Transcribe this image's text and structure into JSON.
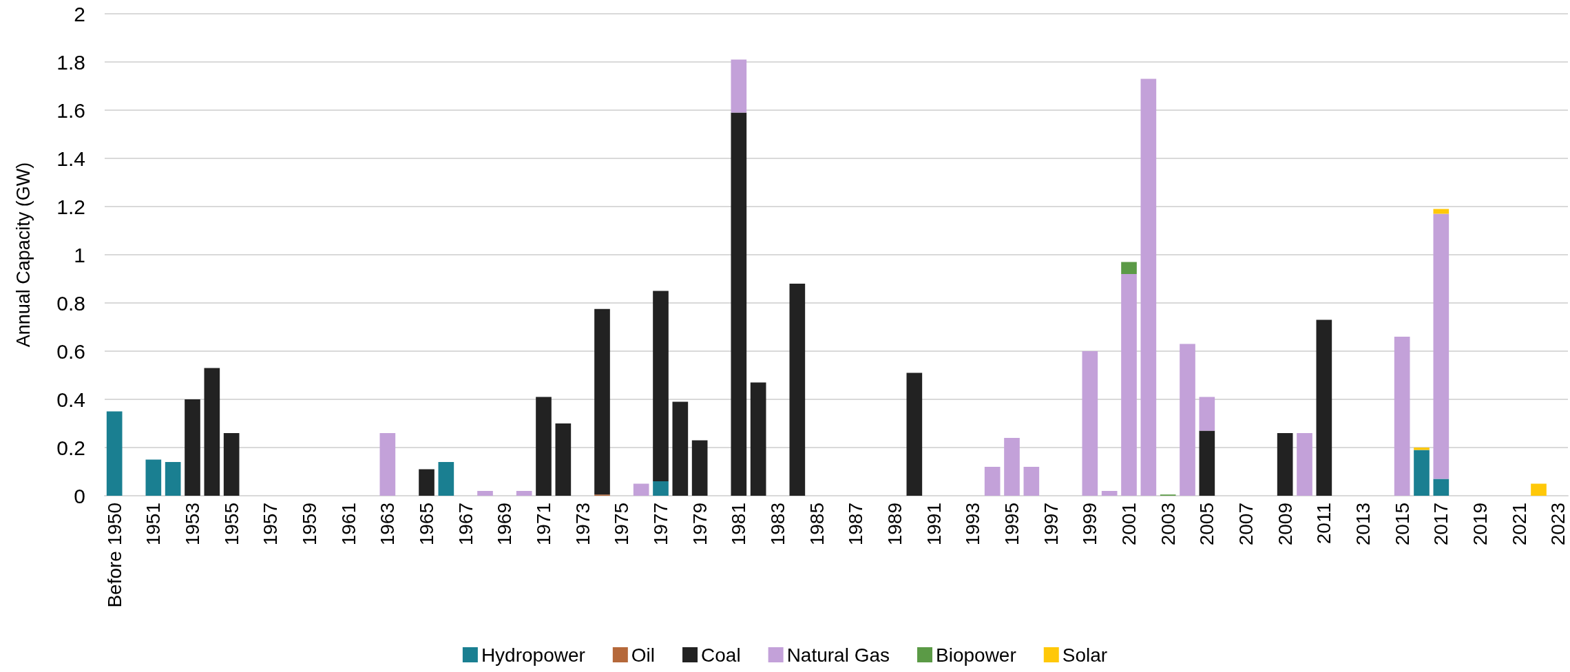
{
  "chart_data": {
    "type": "bar",
    "stacked": true,
    "ylabel": "Annual Capacity (GW)",
    "ylim": [
      0,
      2
    ],
    "yticks": [
      0,
      0.2,
      0.4,
      0.6,
      0.8,
      1,
      1.2,
      1.4,
      1.6,
      1.8,
      2
    ],
    "grid": "y",
    "legend": "bottom",
    "categories": [
      "Before 1950",
      null,
      "1951",
      null,
      "1953",
      null,
      "1955",
      null,
      "1957",
      null,
      "1959",
      null,
      "1961",
      null,
      "1963",
      null,
      "1965",
      null,
      "1967",
      null,
      "1969",
      null,
      "1971",
      null,
      "1973",
      null,
      "1975",
      null,
      "1977",
      null,
      "1979",
      null,
      "1981",
      null,
      "1983",
      null,
      "1985",
      null,
      "1987",
      null,
      "1989",
      null,
      "1991",
      null,
      "1993",
      null,
      "1995",
      null,
      "1997",
      null,
      "1999",
      null,
      "2001",
      null,
      "2003",
      null,
      "2005",
      null,
      "2007",
      null,
      "2009",
      null,
      "2011",
      null,
      "2013",
      null,
      "2015",
      null,
      "2017",
      null,
      "2019",
      null,
      "2021",
      null,
      "2023"
    ],
    "series": [
      {
        "name": "Hydropower",
        "color": "#1a7f91",
        "values": [
          0.35,
          null,
          0.15,
          0.14,
          null,
          null,
          null,
          null,
          null,
          null,
          null,
          null,
          null,
          null,
          null,
          null,
          null,
          0.14,
          null,
          null,
          null,
          null,
          null,
          null,
          null,
          null,
          null,
          null,
          0.06,
          null,
          null,
          null,
          null,
          null,
          null,
          null,
          null,
          null,
          null,
          null,
          null,
          null,
          null,
          null,
          null,
          null,
          null,
          null,
          null,
          null,
          null,
          null,
          null,
          null,
          null,
          null,
          null,
          null,
          null,
          null,
          null,
          null,
          null,
          null,
          null,
          null,
          null,
          0.19,
          0.07,
          null,
          null,
          null,
          null,
          null,
          null
        ]
      },
      {
        "name": "Oil",
        "color": "#b5683a",
        "values": [
          null,
          null,
          null,
          null,
          null,
          null,
          null,
          null,
          null,
          null,
          null,
          null,
          null,
          null,
          null,
          null,
          null,
          null,
          null,
          null,
          null,
          null,
          null,
          null,
          null,
          0.005,
          null,
          null,
          null,
          null,
          null,
          null,
          null,
          null,
          null,
          null,
          null,
          null,
          null,
          null,
          null,
          null,
          null,
          null,
          null,
          null,
          null,
          null,
          null,
          null,
          null,
          null,
          null,
          null,
          null,
          null,
          null,
          null,
          null,
          null,
          null,
          null,
          null,
          null,
          null,
          null,
          null,
          null,
          null,
          null,
          null,
          null,
          null,
          null,
          null
        ]
      },
      {
        "name": "Coal",
        "color": "#222222",
        "values": [
          null,
          null,
          null,
          null,
          0.4,
          0.53,
          0.26,
          null,
          null,
          null,
          null,
          null,
          null,
          null,
          null,
          null,
          0.11,
          null,
          null,
          null,
          null,
          null,
          0.41,
          0.3,
          null,
          0.77,
          null,
          null,
          0.79,
          0.39,
          0.23,
          null,
          1.59,
          0.47,
          null,
          0.88,
          null,
          null,
          null,
          null,
          null,
          0.51,
          null,
          null,
          null,
          null,
          null,
          null,
          null,
          null,
          null,
          null,
          null,
          null,
          null,
          null,
          0.27,
          null,
          null,
          null,
          0.26,
          null,
          0.73,
          null,
          null,
          null,
          null,
          null,
          null,
          null,
          null,
          null,
          null,
          null,
          null
        ]
      },
      {
        "name": "Natural Gas",
        "color": "#c3a1d9",
        "values": [
          null,
          null,
          null,
          null,
          null,
          null,
          null,
          null,
          null,
          null,
          null,
          null,
          null,
          null,
          0.26,
          null,
          null,
          null,
          null,
          0.02,
          null,
          0.02,
          null,
          null,
          null,
          null,
          null,
          0.05,
          null,
          null,
          null,
          null,
          0.22,
          null,
          null,
          null,
          null,
          null,
          null,
          null,
          null,
          null,
          null,
          null,
          null,
          0.12,
          0.24,
          0.12,
          null,
          null,
          0.6,
          0.02,
          0.92,
          1.73,
          null,
          0.63,
          0.14,
          null,
          null,
          null,
          null,
          0.26,
          null,
          null,
          null,
          null,
          0.66,
          null,
          1.1,
          null,
          null,
          null,
          null,
          null,
          null
        ]
      },
      {
        "name": "Biopower",
        "color": "#5b9a46",
        "values": [
          null,
          null,
          null,
          null,
          null,
          null,
          null,
          null,
          null,
          null,
          null,
          null,
          null,
          null,
          null,
          null,
          null,
          null,
          null,
          null,
          null,
          null,
          null,
          null,
          null,
          null,
          null,
          null,
          null,
          null,
          null,
          null,
          null,
          null,
          null,
          null,
          null,
          null,
          null,
          null,
          null,
          null,
          null,
          null,
          null,
          null,
          null,
          null,
          null,
          null,
          null,
          null,
          0.05,
          null,
          0.005,
          null,
          null,
          null,
          null,
          null,
          null,
          null,
          null,
          null,
          null,
          null,
          null,
          null,
          null,
          null,
          null,
          null,
          null,
          null,
          null
        ]
      },
      {
        "name": "Solar",
        "color": "#ffc808",
        "values": [
          null,
          null,
          null,
          null,
          null,
          null,
          null,
          null,
          null,
          null,
          null,
          null,
          null,
          null,
          null,
          null,
          null,
          null,
          null,
          null,
          null,
          null,
          null,
          null,
          null,
          null,
          null,
          null,
          null,
          null,
          null,
          null,
          null,
          null,
          null,
          null,
          null,
          null,
          null,
          null,
          null,
          null,
          null,
          null,
          null,
          null,
          null,
          null,
          null,
          null,
          null,
          null,
          null,
          null,
          null,
          null,
          null,
          null,
          null,
          null,
          null,
          null,
          null,
          null,
          null,
          null,
          null,
          0.01,
          0.02,
          null,
          null,
          null,
          null,
          0.05,
          null
        ]
      }
    ]
  }
}
